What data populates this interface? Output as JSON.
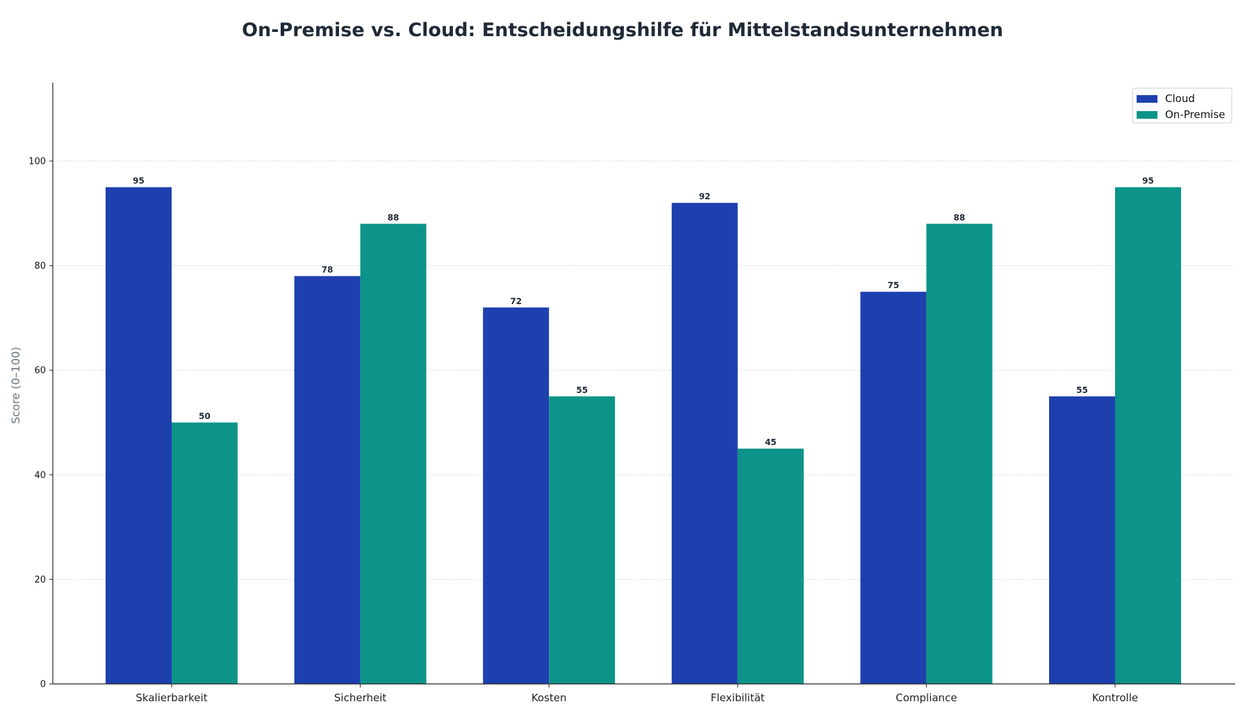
{
  "chart_data": {
    "type": "bar",
    "title": "On-Premise vs. Cloud: Entscheidungshilfe für Mittelstandsunternehmen",
    "xlabel": "",
    "ylabel": "Score (0–100)",
    "categories": [
      "Skalierbarkeit",
      "Sicherheit",
      "Kosten",
      "Flexibilität",
      "Compliance",
      "Kontrolle"
    ],
    "series": [
      {
        "name": "Cloud",
        "color": "#1e40af",
        "values": [
          95,
          78,
          72,
          92,
          75,
          55
        ]
      },
      {
        "name": "On-Premise",
        "color": "#0d9488",
        "values": [
          50,
          88,
          55,
          45,
          88,
          95
        ]
      }
    ],
    "ylim": [
      0,
      115
    ],
    "yticks": [
      0,
      20,
      40,
      60,
      80,
      100
    ],
    "grid": true,
    "legend_position": "top-right",
    "data_labels": true
  }
}
